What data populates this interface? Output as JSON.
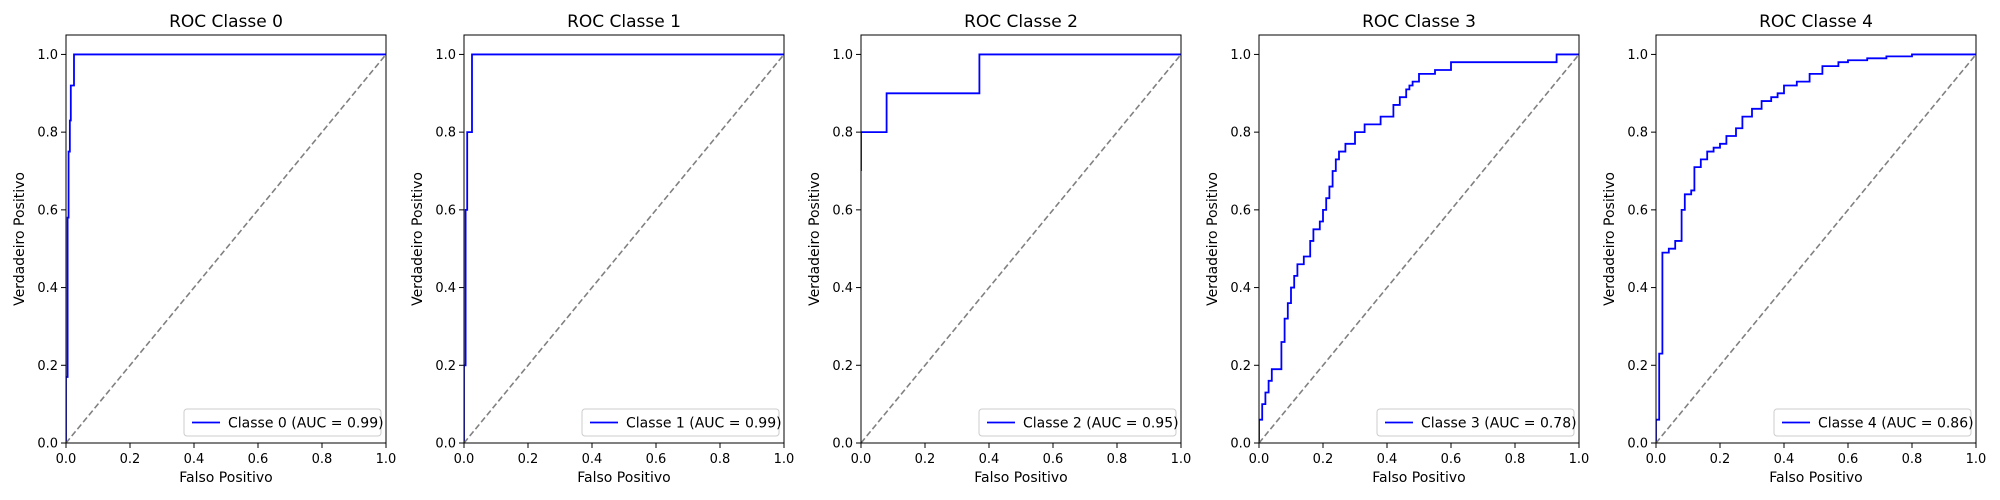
{
  "chart_data": [
    {
      "type": "line",
      "title": "ROC Classe 0",
      "xlabel": "Falso Positivo",
      "ylabel": "Verdadeiro Positivo",
      "xlim": [
        0,
        1
      ],
      "ylim": [
        0,
        1.05
      ],
      "xticks": [
        "0.0",
        "0.2",
        "0.4",
        "0.6",
        "0.8",
        "1.0"
      ],
      "yticks": [
        "0.0",
        "0.2",
        "0.4",
        "0.6",
        "0.8",
        "1.0"
      ],
      "legend": "lower right",
      "grid": false,
      "series": [
        {
          "name": "Classe 0 (AUC = 0.99)",
          "color": "#0000ff",
          "x": [
            0,
            0,
            0.005,
            0.005,
            0.008,
            0.008,
            0.012,
            0.012,
            0.015,
            0.015,
            0.025,
            0.025,
            0.04,
            0.04,
            1.0
          ],
          "y": [
            0,
            0.17,
            0.17,
            0.58,
            0.58,
            0.75,
            0.75,
            0.83,
            0.83,
            0.92,
            0.92,
            1.0,
            1.0,
            1.0,
            1.0
          ]
        },
        {
          "name": "",
          "color": "#808080",
          "dashed": true,
          "x": [
            0,
            1
          ],
          "y": [
            0,
            1
          ]
        }
      ]
    },
    {
      "type": "line",
      "title": "ROC Classe 1",
      "xlabel": "Falso Positivo",
      "ylabel": "Verdadeiro Positivo",
      "xlim": [
        0,
        1
      ],
      "ylim": [
        0,
        1.05
      ],
      "xticks": [
        "0.0",
        "0.2",
        "0.4",
        "0.6",
        "0.8",
        "1.0"
      ],
      "yticks": [
        "0.0",
        "0.2",
        "0.4",
        "0.6",
        "0.8",
        "1.0"
      ],
      "legend": "lower right",
      "grid": false,
      "series": [
        {
          "name": "Classe 1 (AUC = 0.99)",
          "color": "#0000ff",
          "x": [
            0,
            0,
            0.005,
            0.005,
            0.01,
            0.01,
            0.025,
            0.025,
            1.0
          ],
          "y": [
            0,
            0.2,
            0.2,
            0.6,
            0.6,
            0.8,
            0.8,
            1.0,
            1.0
          ]
        },
        {
          "name": "",
          "color": "#808080",
          "dashed": true,
          "x": [
            0,
            1
          ],
          "y": [
            0,
            1
          ]
        }
      ]
    },
    {
      "type": "line",
      "title": "ROC Classe 2",
      "xlabel": "Falso Positivo",
      "ylabel": "Verdadeiro Positivo",
      "xlim": [
        0,
        1
      ],
      "ylim": [
        0,
        1.05
      ],
      "xticks": [
        "0.0",
        "0.2",
        "0.4",
        "0.6",
        "0.8",
        "1.0"
      ],
      "yticks": [
        "0.0",
        "0.2",
        "0.4",
        "0.6",
        "0.8",
        "1.0"
      ],
      "legend": "lower right",
      "grid": false,
      "series": [
        {
          "name": "Classe 2 (AUC = 0.95)",
          "color": "#0000ff",
          "x": [
            0,
            0,
            0.08,
            0.08,
            0.37,
            0.37,
            1.0
          ],
          "y": [
            0.7,
            0.8,
            0.8,
            0.9,
            0.9,
            1.0,
            1.0
          ]
        },
        {
          "name": "",
          "color": "#808080",
          "dashed": true,
          "x": [
            0,
            1
          ],
          "y": [
            0,
            1
          ]
        }
      ]
    },
    {
      "type": "line",
      "title": "ROC Classe 3",
      "xlabel": "Falso Positivo",
      "ylabel": "Verdadeiro Positivo",
      "xlim": [
        0,
        1
      ],
      "ylim": [
        0,
        1.05
      ],
      "xticks": [
        "0.0",
        "0.2",
        "0.4",
        "0.6",
        "0.8",
        "1.0"
      ],
      "yticks": [
        "0.0",
        "0.2",
        "0.4",
        "0.6",
        "0.8",
        "1.0"
      ],
      "legend": "lower right",
      "grid": false,
      "series": [
        {
          "name": "Classe 3 (AUC = 0.78)",
          "color": "#0000ff",
          "x": [
            0,
            0,
            0.01,
            0.01,
            0.02,
            0.02,
            0.03,
            0.03,
            0.04,
            0.04,
            0.07,
            0.07,
            0.08,
            0.08,
            0.09,
            0.09,
            0.1,
            0.1,
            0.11,
            0.11,
            0.12,
            0.12,
            0.14,
            0.14,
            0.16,
            0.16,
            0.17,
            0.17,
            0.19,
            0.19,
            0.2,
            0.2,
            0.21,
            0.21,
            0.22,
            0.22,
            0.23,
            0.23,
            0.24,
            0.24,
            0.25,
            0.25,
            0.27,
            0.27,
            0.3,
            0.3,
            0.33,
            0.33,
            0.35,
            0.35,
            0.38,
            0.38,
            0.42,
            0.42,
            0.44,
            0.44,
            0.46,
            0.46,
            0.47,
            0.47,
            0.48,
            0.48,
            0.49,
            0.49,
            0.5,
            0.5,
            0.52,
            0.52,
            0.55,
            0.55,
            0.6,
            0.6,
            0.75,
            0.75,
            0.93,
            0.93,
            1.0
          ],
          "y": [
            0,
            0.06,
            0.06,
            0.1,
            0.1,
            0.13,
            0.13,
            0.16,
            0.16,
            0.19,
            0.19,
            0.26,
            0.26,
            0.32,
            0.32,
            0.36,
            0.36,
            0.4,
            0.4,
            0.43,
            0.43,
            0.46,
            0.46,
            0.48,
            0.48,
            0.52,
            0.52,
            0.55,
            0.55,
            0.57,
            0.57,
            0.6,
            0.6,
            0.63,
            0.63,
            0.66,
            0.66,
            0.7,
            0.7,
            0.73,
            0.73,
            0.75,
            0.75,
            0.77,
            0.77,
            0.8,
            0.8,
            0.82,
            0.82,
            0.82,
            0.82,
            0.84,
            0.84,
            0.87,
            0.87,
            0.89,
            0.89,
            0.91,
            0.91,
            0.92,
            0.92,
            0.93,
            0.93,
            0.93,
            0.93,
            0.95,
            0.95,
            0.95,
            0.95,
            0.96,
            0.96,
            0.98,
            0.98,
            0.98,
            0.98,
            1.0,
            1.0
          ]
        },
        {
          "name": "",
          "color": "#808080",
          "dashed": true,
          "x": [
            0,
            1
          ],
          "y": [
            0,
            1
          ]
        }
      ]
    },
    {
      "type": "line",
      "title": "ROC Classe 4",
      "xlabel": "Falso Positivo",
      "ylabel": "Verdadeiro Positivo",
      "xlim": [
        0,
        1
      ],
      "ylim": [
        0,
        1.05
      ],
      "xticks": [
        "0.0",
        "0.2",
        "0.4",
        "0.6",
        "0.8",
        "1.0"
      ],
      "yticks": [
        "0.0",
        "0.2",
        "0.4",
        "0.6",
        "0.8",
        "1.0"
      ],
      "legend": "lower right",
      "grid": false,
      "series": [
        {
          "name": "Classe 4 (AUC = 0.86)",
          "color": "#0000ff",
          "x": [
            0,
            0,
            0.01,
            0.01,
            0.02,
            0.02,
            0.04,
            0.04,
            0.06,
            0.06,
            0.08,
            0.08,
            0.09,
            0.09,
            0.11,
            0.11,
            0.12,
            0.12,
            0.14,
            0.14,
            0.16,
            0.16,
            0.18,
            0.18,
            0.2,
            0.2,
            0.22,
            0.22,
            0.25,
            0.25,
            0.27,
            0.27,
            0.3,
            0.3,
            0.33,
            0.33,
            0.36,
            0.36,
            0.38,
            0.38,
            0.4,
            0.4,
            0.44,
            0.44,
            0.48,
            0.48,
            0.52,
            0.52,
            0.57,
            0.57,
            0.6,
            0.6,
            0.66,
            0.66,
            0.72,
            0.72,
            0.8,
            0.8,
            0.9,
            0.9,
            1.0
          ],
          "y": [
            0,
            0.06,
            0.06,
            0.23,
            0.23,
            0.49,
            0.49,
            0.5,
            0.5,
            0.52,
            0.52,
            0.6,
            0.6,
            0.64,
            0.64,
            0.65,
            0.65,
            0.71,
            0.71,
            0.73,
            0.73,
            0.75,
            0.75,
            0.76,
            0.76,
            0.77,
            0.77,
            0.79,
            0.79,
            0.81,
            0.81,
            0.84,
            0.84,
            0.86,
            0.86,
            0.88,
            0.88,
            0.89,
            0.89,
            0.9,
            0.9,
            0.92,
            0.92,
            0.93,
            0.93,
            0.95,
            0.95,
            0.97,
            0.97,
            0.98,
            0.98,
            0.985,
            0.985,
            0.99,
            0.99,
            0.995,
            0.995,
            1.0,
            1.0,
            1.0,
            1.0
          ]
        },
        {
          "name": "",
          "color": "#808080",
          "dashed": true,
          "x": [
            0,
            1
          ],
          "y": [
            0,
            1
          ]
        }
      ]
    }
  ]
}
